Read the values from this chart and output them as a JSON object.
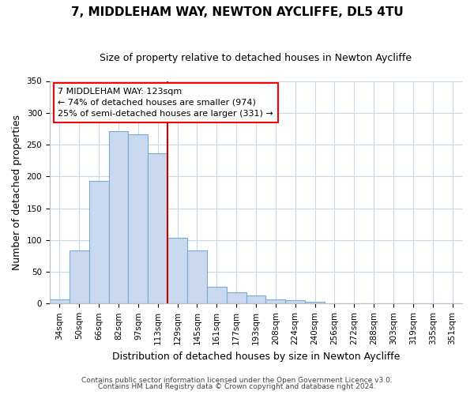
{
  "title": "7, MIDDLEHAM WAY, NEWTON AYCLIFFE, DL5 4TU",
  "subtitle": "Size of property relative to detached houses in Newton Aycliffe",
  "xlabel": "Distribution of detached houses by size in Newton Aycliffe",
  "ylabel": "Number of detached properties",
  "categories": [
    "34sqm",
    "50sqm",
    "66sqm",
    "82sqm",
    "97sqm",
    "113sqm",
    "129sqm",
    "145sqm",
    "161sqm",
    "177sqm",
    "193sqm",
    "208sqm",
    "224sqm",
    "240sqm",
    "256sqm",
    "272sqm",
    "288sqm",
    "303sqm",
    "319sqm",
    "335sqm",
    "351sqm"
  ],
  "bar_heights": [
    6,
    84,
    193,
    271,
    266,
    236,
    103,
    84,
    27,
    18,
    13,
    7,
    5,
    3,
    0,
    0,
    0,
    1,
    0,
    0,
    1
  ],
  "bar_color": "#c9d9f0",
  "bar_edge_color": "#7aaad0",
  "vline_x": 5.5,
  "vline_color": "#cc0000",
  "annotation_lines": [
    "7 MIDDLEHAM WAY: 123sqm",
    "← 74% of detached houses are smaller (974)",
    "25% of semi-detached houses are larger (331) →"
  ],
  "ylim": [
    0,
    350
  ],
  "yticks": [
    0,
    50,
    100,
    150,
    200,
    250,
    300,
    350
  ],
  "footer_line1": "Contains HM Land Registry data © Crown copyright and database right 2024.",
  "footer_line2": "Contains public sector information licensed under the Open Government Licence v3.0.",
  "title_fontsize": 11,
  "subtitle_fontsize": 9,
  "axis_label_fontsize": 9,
  "tick_fontsize": 7.5,
  "annotation_fontsize": 8,
  "footer_fontsize": 6.5
}
